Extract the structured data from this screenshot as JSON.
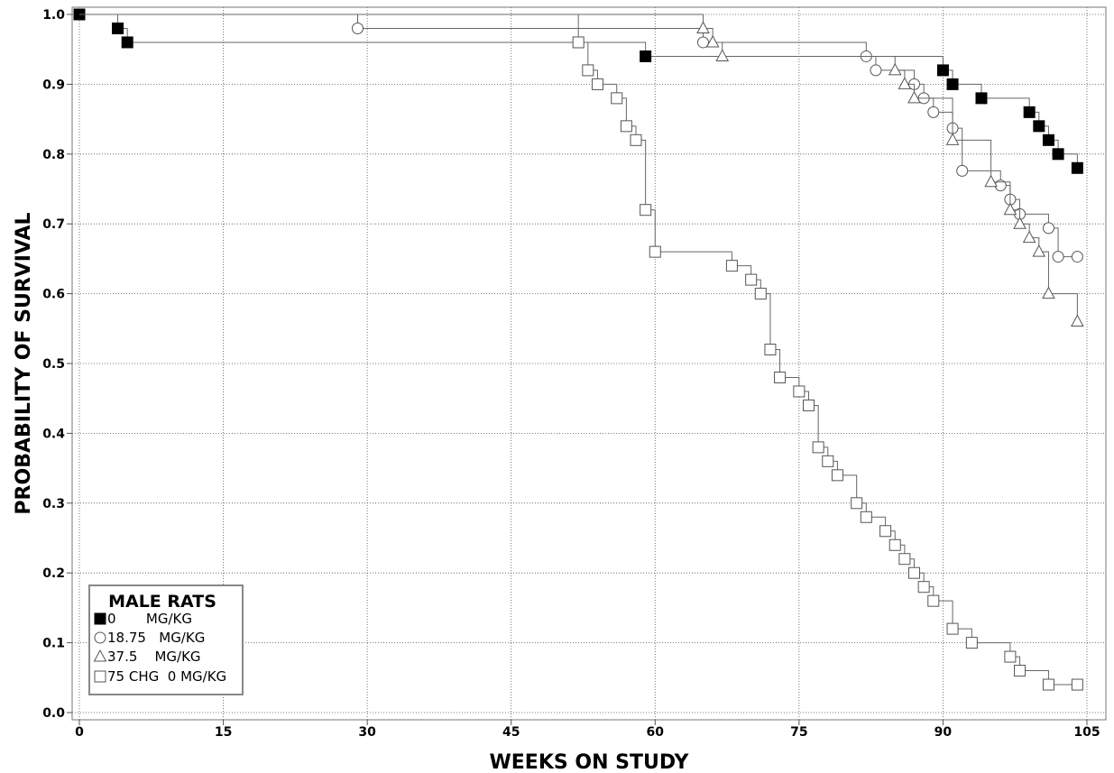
{
  "chart_data": {
    "type": "line",
    "subtype": "kaplan-meier step",
    "xlabel": "WEEKS ON STUDY",
    "ylabel": "PROBABILITY OF SURVIVAL",
    "xlim": [
      0,
      105
    ],
    "ylim": [
      0,
      1.0
    ],
    "x_ticks": [
      "0",
      "15",
      "30",
      "45",
      "60",
      "75",
      "90",
      "105"
    ],
    "y_ticks": [
      "0.0",
      "0.1",
      "0.2",
      "0.3",
      "0.4",
      "0.5",
      "0.6",
      "0.7",
      "0.8",
      "0.9",
      "1.0"
    ],
    "grid": true,
    "legend": {
      "title": "MALE RATS",
      "position": "bottom-left",
      "entries": [
        "0       MG/KG",
        "18.75   MG/KG",
        "37.5    MG/KG",
        "75 CHG  0 MG/KG"
      ]
    },
    "series": [
      {
        "name": "0       MG/KG",
        "marker": "filled-square",
        "x": [
          0,
          4,
          5,
          59,
          90,
          91,
          94,
          99,
          100,
          101,
          102,
          104
        ],
        "y": [
          1.0,
          0.98,
          0.96,
          0.94,
          0.92,
          0.9,
          0.88,
          0.86,
          0.84,
          0.82,
          0.8,
          0.78
        ]
      },
      {
        "name": "18.75   MG/KG",
        "marker": "open-circle",
        "x": [
          29,
          65,
          82,
          83,
          87,
          88,
          89,
          91,
          92,
          96,
          97,
          98,
          101,
          102,
          104
        ],
        "y": [
          0.98,
          0.96,
          0.94,
          0.92,
          0.9,
          0.88,
          0.86,
          0.837,
          0.776,
          0.755,
          0.735,
          0.714,
          0.694,
          0.653,
          0.653
        ]
      },
      {
        "name": "37.5    MG/KG",
        "marker": "open-triangle",
        "x": [
          65,
          66,
          67,
          85,
          86,
          87,
          91,
          95,
          97,
          98,
          99,
          100,
          101,
          104
        ],
        "y": [
          0.98,
          0.96,
          0.94,
          0.92,
          0.9,
          0.88,
          0.82,
          0.76,
          0.72,
          0.7,
          0.68,
          0.66,
          0.6,
          0.56
        ]
      },
      {
        "name": "75 CHG  0 MG/KG",
        "marker": "open-square",
        "x": [
          52,
          53,
          54,
          56,
          57,
          58,
          59,
          60,
          68,
          70,
          71,
          72,
          73,
          75,
          76,
          77,
          78,
          79,
          81,
          82,
          84,
          85,
          86,
          87,
          88,
          89,
          91,
          93,
          97,
          98,
          101,
          104
        ],
        "y": [
          0.96,
          0.92,
          0.9,
          0.88,
          0.84,
          0.82,
          0.72,
          0.66,
          0.64,
          0.62,
          0.6,
          0.52,
          0.48,
          0.46,
          0.44,
          0.38,
          0.36,
          0.34,
          0.3,
          0.28,
          0.26,
          0.24,
          0.22,
          0.2,
          0.18,
          0.16,
          0.12,
          0.1,
          0.08,
          0.06,
          0.04,
          0.04
        ]
      }
    ]
  }
}
